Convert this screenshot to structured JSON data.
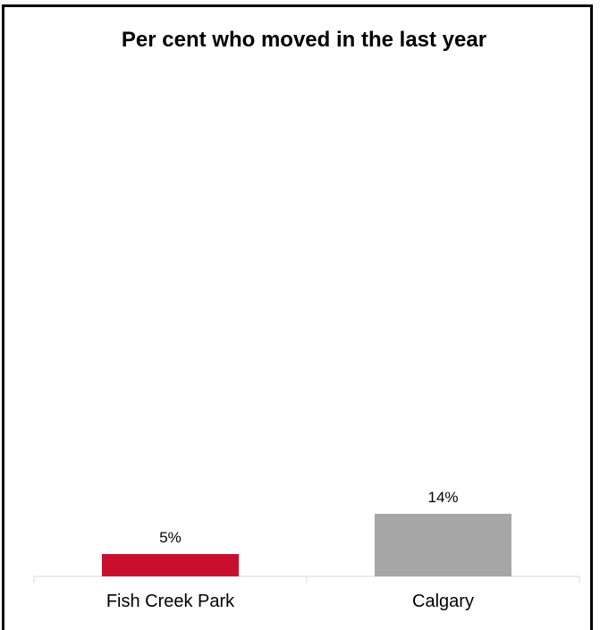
{
  "chart_data": {
    "type": "bar",
    "title": "Per cent who moved in the last year",
    "categories": [
      "Fish Creek Park",
      "Calgary"
    ],
    "values": [
      5,
      14
    ],
    "data_labels": [
      "5%",
      "14%"
    ],
    "colors": [
      "#c8102e",
      "#a6a6a6"
    ],
    "xlabel": "",
    "ylabel": "",
    "ylim": [
      0,
      14
    ],
    "unit": "%",
    "grid": false,
    "legend": "none"
  }
}
